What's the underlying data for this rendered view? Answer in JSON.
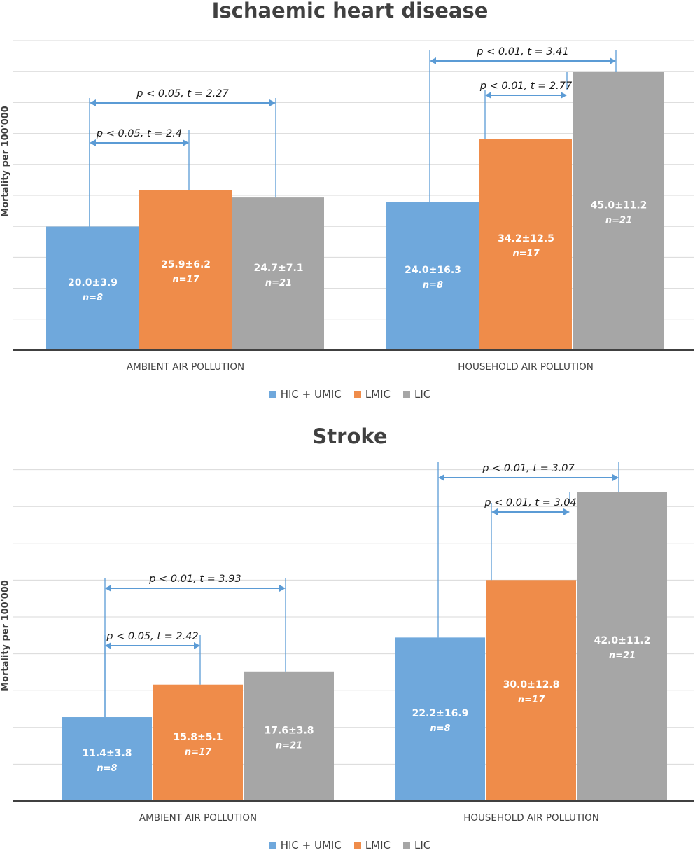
{
  "colors": {
    "hic_umic": "#6fa8dc",
    "lmic": "#ef8c4a",
    "lic": "#a6a6a6",
    "annotation": "#5b9bd5",
    "grid": "#d9d9d9",
    "axis": "#404040"
  },
  "legend": [
    "HIC + UMIC",
    "LMIC",
    "LIC"
  ],
  "chart_data": [
    {
      "type": "bar",
      "title": "Ischaemic heart disease",
      "ylabel": "Mortality per 100'000",
      "categories": [
        "AMBIENT AIR POLLUTION",
        "HOUSEHOLD AIR POLLUTION"
      ],
      "ylim": [
        0,
        45
      ],
      "grid": true,
      "legend_position": "bottom",
      "series": [
        {
          "name": "HIC + UMIC",
          "values": [
            20.0,
            24.0
          ],
          "labels": [
            "20.0±3.9",
            "24.0±16.3"
          ],
          "n": [
            "n=8",
            "n=8"
          ]
        },
        {
          "name": "LMIC",
          "values": [
            25.9,
            34.2
          ],
          "labels": [
            "25.9±6.2",
            "34.2±12.5"
          ],
          "n": [
            "n=17",
            "n=17"
          ]
        },
        {
          "name": "LIC",
          "values": [
            24.7,
            45.0
          ],
          "labels": [
            "24.7±7.1",
            "45.0±11.2"
          ],
          "n": [
            "n=21",
            "n=21"
          ]
        }
      ],
      "comparisons": [
        {
          "category": 0,
          "from": 0,
          "to": 2,
          "text": "p < 0.05, t = 2.27"
        },
        {
          "category": 0,
          "from": 0,
          "to": 1,
          "text": "p < 0.05, t = 2.4"
        },
        {
          "category": 1,
          "from": 0,
          "to": 2,
          "text": "p < 0.01, t = 3.41"
        },
        {
          "category": 1,
          "from": 1,
          "to": 2,
          "text": "p < 0.01, t = 2.77"
        }
      ]
    },
    {
      "type": "bar",
      "title": "Stroke",
      "ylabel": "Mortality per 100'000",
      "categories": [
        "AMBIENT AIR POLLUTION",
        "HOUSEHOLD AIR POLLUTION"
      ],
      "ylim": [
        0,
        42
      ],
      "grid": true,
      "legend_position": "bottom",
      "series": [
        {
          "name": "HIC + UMIC",
          "values": [
            11.4,
            22.2
          ],
          "labels": [
            "11.4±3.8",
            "22.2±16.9"
          ],
          "n": [
            "n=8",
            "n=8"
          ]
        },
        {
          "name": "LMIC",
          "values": [
            15.8,
            30.0
          ],
          "labels": [
            "15.8±5.1",
            "30.0±12.8"
          ],
          "n": [
            "n=17",
            "n=17"
          ]
        },
        {
          "name": "LIC",
          "values": [
            17.6,
            42.0
          ],
          "labels": [
            "17.6±3.8",
            "42.0±11.2"
          ],
          "n": [
            "n=21",
            "n=21"
          ]
        }
      ],
      "comparisons": [
        {
          "category": 0,
          "from": 0,
          "to": 2,
          "text": "p < 0.01, t = 3.93"
        },
        {
          "category": 0,
          "from": 0,
          "to": 1,
          "text": "p < 0.05, t = 2.42"
        },
        {
          "category": 1,
          "from": 0,
          "to": 2,
          "text": "p < 0.01, t = 3.07"
        },
        {
          "category": 1,
          "from": 1,
          "to": 2,
          "text": "p < 0.01, t = 3.04"
        }
      ]
    }
  ]
}
